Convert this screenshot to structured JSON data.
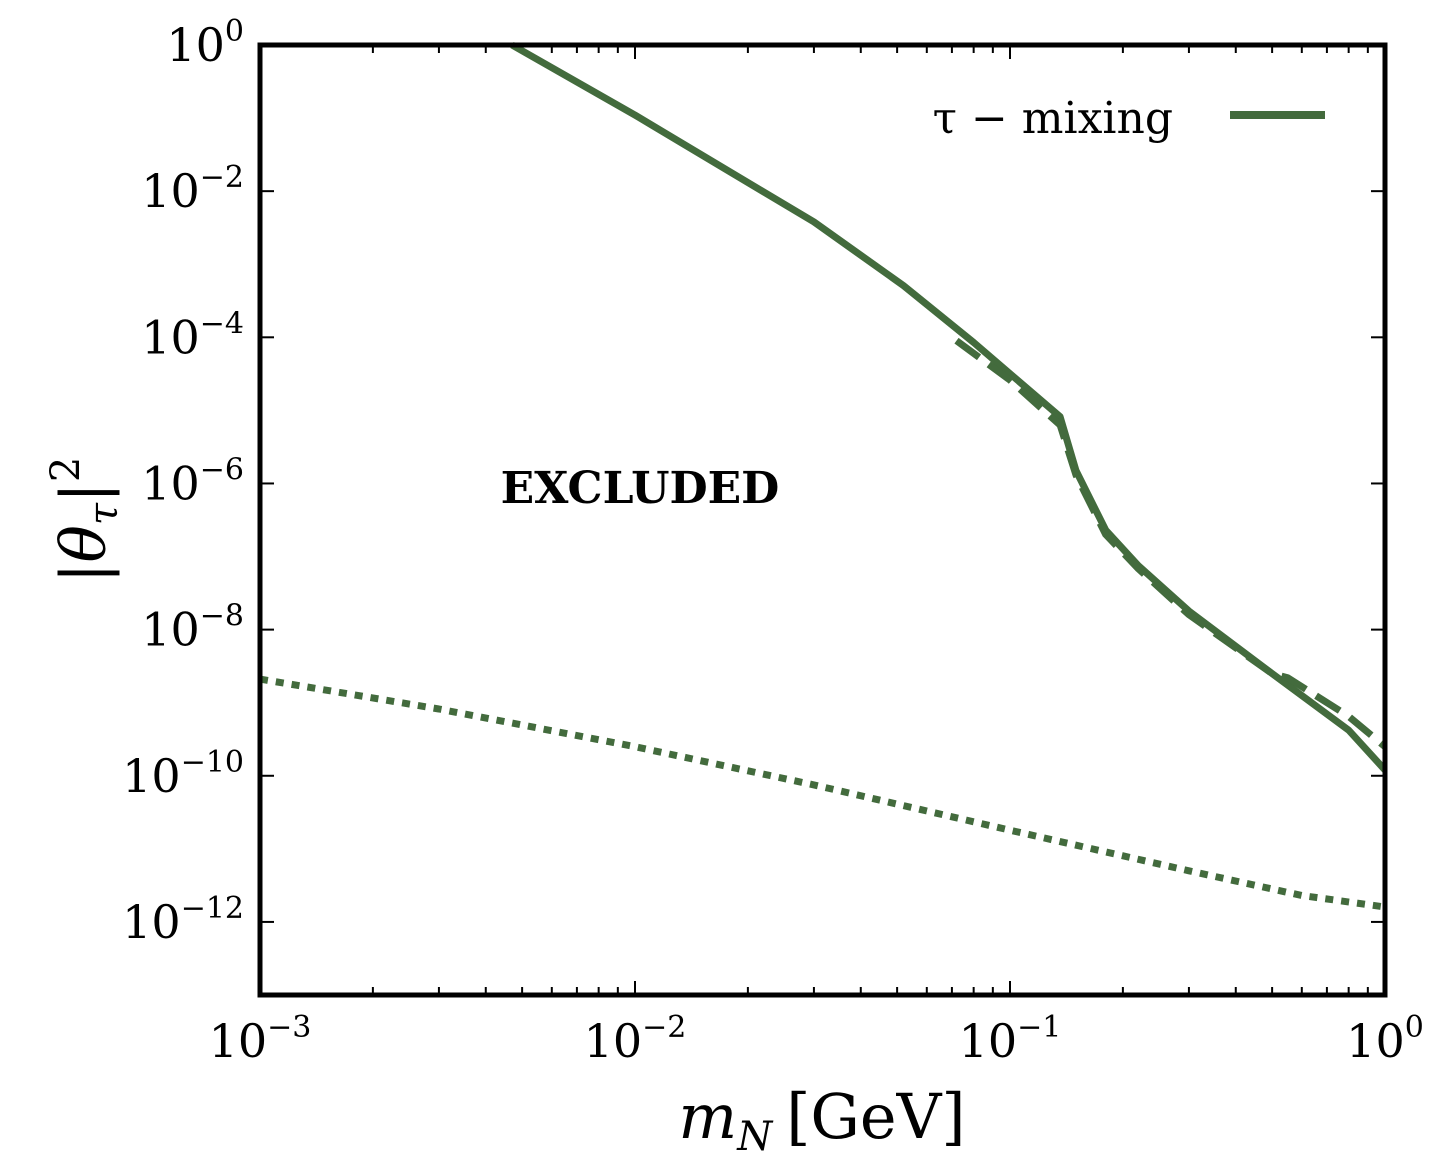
{
  "chart_data": {
    "type": "line",
    "title": "",
    "xlabel_main": "m",
    "xlabel_sub": "N",
    "xlabel_unit": "[GeV]",
    "ylabel_main": "|θ",
    "ylabel_sub": "τ",
    "ylabel_close": "|",
    "ylabel_sup": "2",
    "xscale": "log",
    "yscale": "log",
    "xlim": [
      0.001,
      1
    ],
    "ylim": [
      1e-13,
      1
    ],
    "x_ticks": [
      {
        "value": 0.001,
        "base": "10",
        "exp": "−3"
      },
      {
        "value": 0.01,
        "base": "10",
        "exp": "−2"
      },
      {
        "value": 0.1,
        "base": "10",
        "exp": "−1"
      },
      {
        "value": 1,
        "base": "10",
        "exp": "0"
      }
    ],
    "y_ticks": [
      {
        "value": 1,
        "base": "10",
        "exp": "0"
      },
      {
        "value": 0.01,
        "base": "10",
        "exp": "−2"
      },
      {
        "value": 0.0001,
        "base": "10",
        "exp": "−4"
      },
      {
        "value": 1e-06,
        "base": "10",
        "exp": "−6"
      },
      {
        "value": 1e-08,
        "base": "10",
        "exp": "−8"
      },
      {
        "value": 1e-10,
        "base": "10",
        "exp": "−10"
      },
      {
        "value": 1e-12,
        "base": "10",
        "exp": "−12"
      }
    ],
    "legend": {
      "label": "τ − mixing",
      "placement": "top-right"
    },
    "annotation": "EXCLUDED",
    "color": "#436b3d",
    "series": [
      {
        "style": "solid",
        "x": [
          0.0047,
          0.01,
          0.03,
          0.052,
          0.08,
          0.136,
          0.15,
          0.18,
          0.22,
          0.3,
          0.5,
          0.8,
          1.0
        ],
        "y": [
          1.0,
          0.11,
          0.0038,
          0.00051,
          8.5e-05,
          8.2e-06,
          1.5e-06,
          2.3e-07,
          7.5e-08,
          1.8e-08,
          2.5e-09,
          4.2e-10,
          1.2e-10
        ]
      },
      {
        "style": "dashed",
        "x": [
          0.072,
          0.1,
          0.136,
          0.15,
          0.18,
          0.22,
          0.3,
          0.5,
          0.55,
          0.8,
          1.0
        ],
        "y": [
          9e-05,
          2.6e-05,
          6.3e-06,
          1.3e-06,
          2e-07,
          6.8e-08,
          1.6e-08,
          2.5e-09,
          2.2e-09,
          6.5e-10,
          2.5e-10
        ]
      },
      {
        "style": "dotted",
        "x": [
          0.001,
          0.003,
          0.01,
          0.03,
          0.1,
          0.3,
          0.6,
          1.0
        ],
        "y": [
          2.1e-09,
          8.2e-10,
          2.5e-10,
          7.5e-11,
          1.8e-11,
          5e-12,
          2.3e-12,
          1.6e-12
        ]
      }
    ]
  }
}
